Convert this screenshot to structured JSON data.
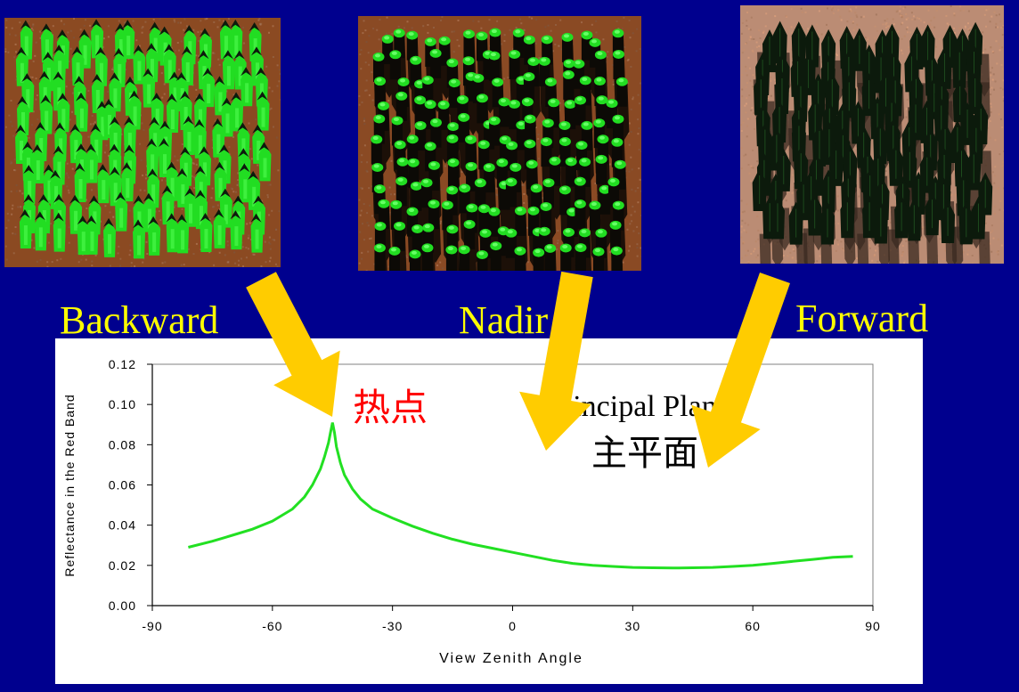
{
  "view_labels": {
    "backward": "Backward",
    "nadir": "Nadir",
    "forward": "Forward"
  },
  "colors": {
    "background": "#00008e",
    "label": "#ffff00",
    "arrow": "#ffcc00",
    "curve": "#22e022",
    "hotspot_text": "#ff0000",
    "soil_backward": "#8b4a22",
    "soil_nadir": "#8a4a24",
    "soil_forward": "#bb8c74",
    "tree_lit": "#22dd22",
    "tree_dark": "#0c1a0c"
  },
  "chart_data": {
    "type": "line",
    "title": "",
    "xlabel": "View Zenith Angle",
    "ylabel": "Reflectance in the Red Band",
    "xlim": [
      -90,
      90
    ],
    "ylim": [
      0,
      0.12
    ],
    "x_ticks": [
      -90,
      -60,
      -30,
      0,
      30,
      60,
      90
    ],
    "y_ticks": [
      "0.00",
      "0.02",
      "0.04",
      "0.06",
      "0.08",
      "0.10",
      "0.12"
    ],
    "grid": false,
    "series": [
      {
        "x": [
          -81,
          -75,
          -70,
          -65,
          -60,
          -55,
          -52,
          -50,
          -48,
          -47,
          -46,
          -45.5,
          -45,
          -44.5,
          -44,
          -43,
          -42,
          -40,
          -38,
          -35,
          -30,
          -25,
          -20,
          -15,
          -10,
          -5,
          0,
          5,
          10,
          15,
          20,
          25,
          30,
          35,
          40,
          45,
          50,
          55,
          60,
          65,
          70,
          75,
          80,
          85
        ],
        "y": [
          0.029,
          0.032,
          0.035,
          0.038,
          0.042,
          0.048,
          0.054,
          0.06,
          0.068,
          0.074,
          0.081,
          0.086,
          0.091,
          0.086,
          0.079,
          0.071,
          0.065,
          0.058,
          0.053,
          0.048,
          0.0435,
          0.0395,
          0.036,
          0.033,
          0.0305,
          0.0285,
          0.0265,
          0.0245,
          0.0225,
          0.021,
          0.02,
          0.0195,
          0.019,
          0.0188,
          0.0187,
          0.0188,
          0.019,
          0.0195,
          0.02,
          0.021,
          0.022,
          0.023,
          0.024,
          0.0245
        ]
      }
    ],
    "annotations": {
      "hotspot": "热点",
      "plane_en": "Principal Plane",
      "plane_cn": "主平面"
    }
  }
}
